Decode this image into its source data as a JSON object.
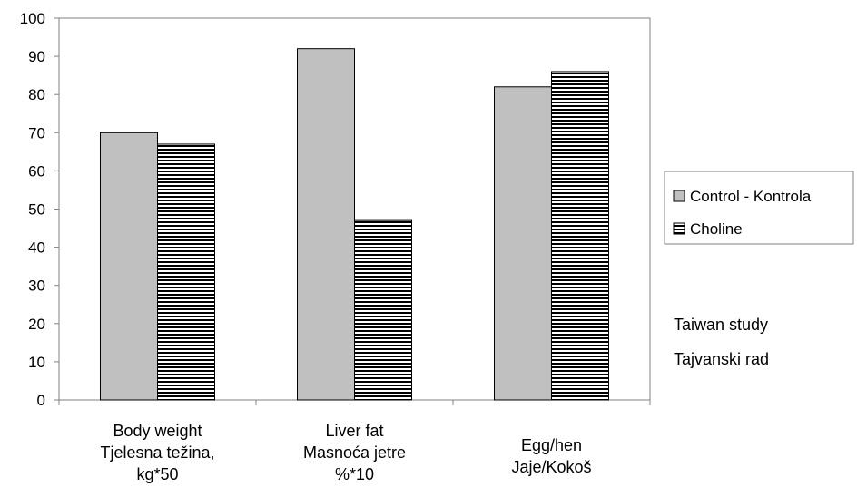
{
  "chart_data": {
    "type": "bar",
    "categories": [
      [
        "Body weight",
        "Tjelesna težina,",
        "kg*50"
      ],
      [
        "Liver fat",
        "Masnoća jetre",
        "%*10"
      ],
      [
        "Egg/hen",
        "Jaje/Kokoš"
      ]
    ],
    "series": [
      {
        "name": "Control - Kontrola",
        "values": [
          70,
          92,
          82
        ],
        "fill": "#c0c0c0",
        "pattern": "solid"
      },
      {
        "name": "Choline",
        "values": [
          67,
          47,
          86
        ],
        "fill": "#ffffff",
        "pattern": "horizontal-stripes"
      }
    ],
    "ylim": [
      0,
      100
    ],
    "yticks": [
      "0",
      "10",
      "20",
      "30",
      "40",
      "50",
      "60",
      "70",
      "80",
      "90",
      "100"
    ],
    "grid": false,
    "legend_position": "right",
    "annotations": [
      "Taiwan study",
      "Tajvanski rad"
    ]
  }
}
